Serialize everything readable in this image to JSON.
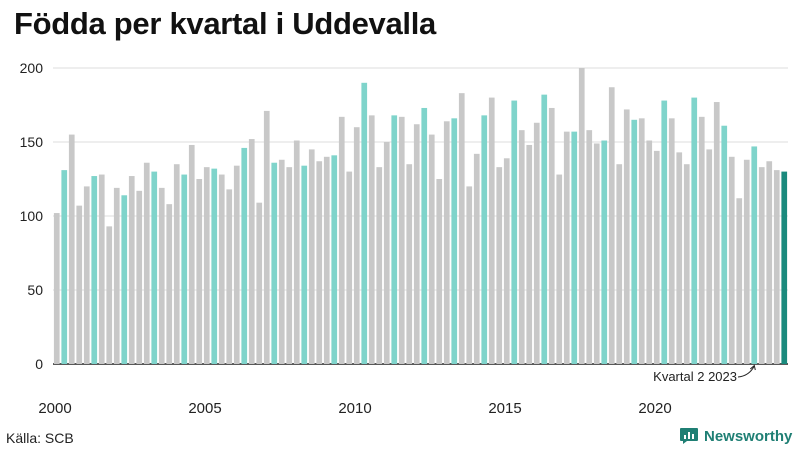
{
  "page": {
    "title": "Födda per kvartal i Uddevalla",
    "source": "Källa: SCB",
    "brand": "Newsworthy"
  },
  "colors": {
    "highlight": "#7fd4cb",
    "other": "#c8c8c8",
    "last": "#1a8a7d",
    "axis": "#222222",
    "grid": "#dddddd",
    "brand": "#1f7f74"
  },
  "chart_data": {
    "type": "bar",
    "title": "Födda per kvartal i Uddevalla",
    "xlabel": "",
    "ylabel": "",
    "ylim": [
      0,
      200
    ],
    "yticks": [
      0,
      50,
      100,
      150,
      200
    ],
    "xtick_labels": [
      "2000",
      "2005",
      "2010",
      "2015",
      "2020"
    ],
    "grid": true,
    "highlight_quarter": "Kvartal 2",
    "annotation": "Kvartal 2 2023",
    "start_year": 2000,
    "values": [
      102,
      131,
      155,
      107,
      120,
      127,
      128,
      93,
      119,
      114,
      127,
      117,
      136,
      130,
      119,
      108,
      135,
      128,
      148,
      125,
      133,
      132,
      128,
      118,
      134,
      146,
      152,
      109,
      171,
      136,
      138,
      133,
      151,
      134,
      145,
      137,
      140,
      141,
      167,
      130,
      160,
      190,
      168,
      133,
      150,
      168,
      167,
      135,
      162,
      173,
      155,
      125,
      164,
      166,
      183,
      120,
      142,
      168,
      180,
      133,
      139,
      178,
      158,
      148,
      163,
      182,
      173,
      128,
      157,
      157,
      200,
      158,
      149,
      151,
      187,
      135,
      172,
      165,
      166,
      151,
      144,
      178,
      166,
      143,
      135,
      180,
      167,
      145,
      177,
      161,
      140,
      112,
      138,
      147,
      133,
      137,
      131,
      130
    ]
  }
}
